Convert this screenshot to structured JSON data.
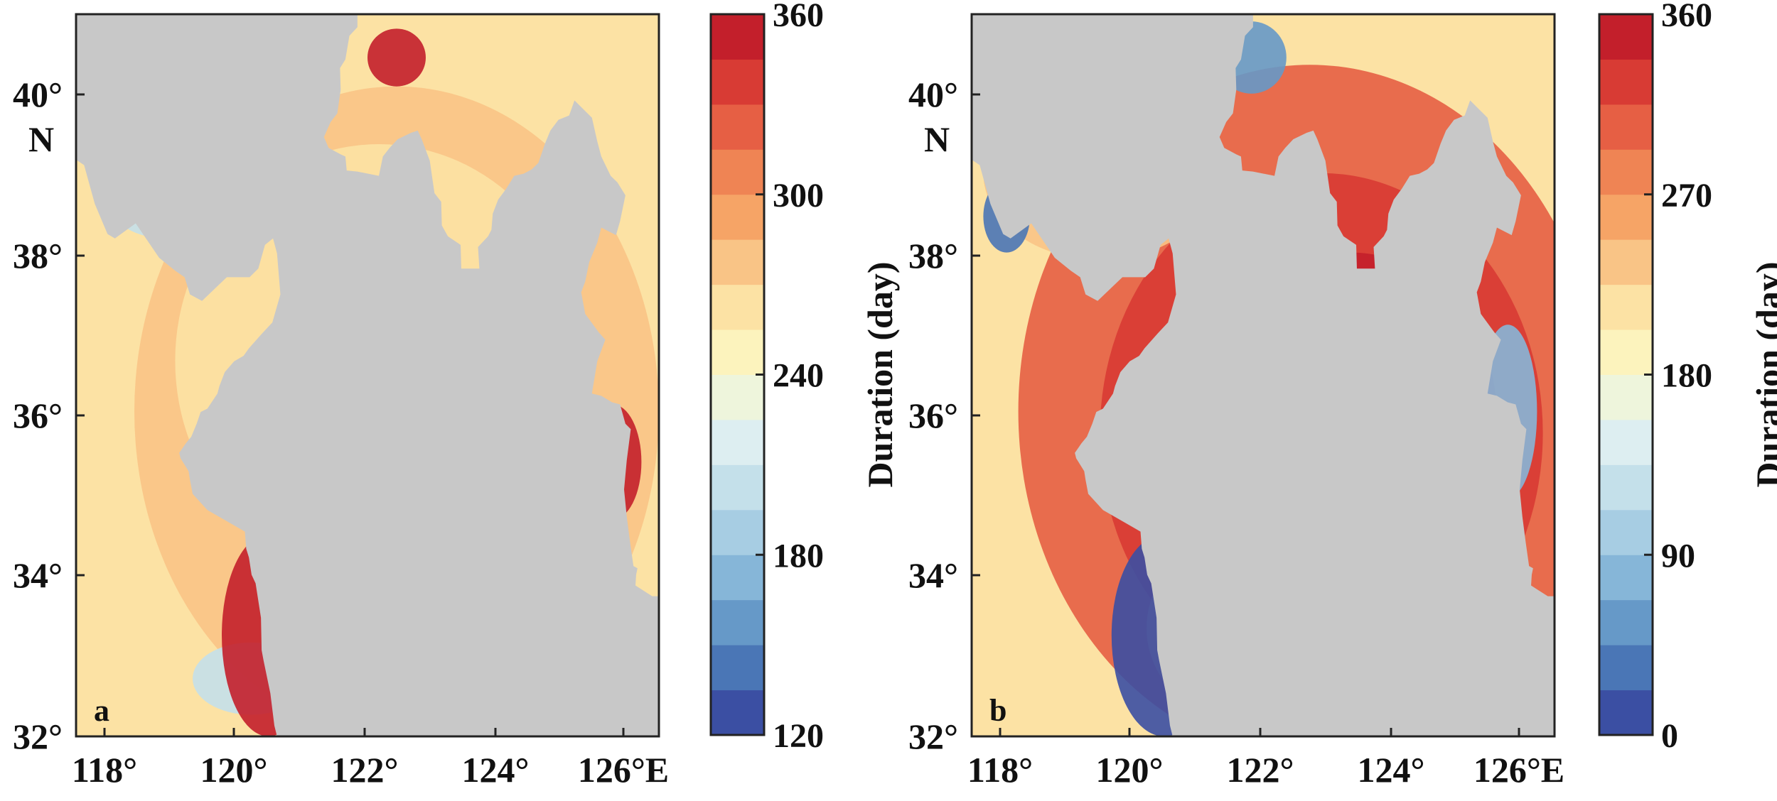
{
  "panels": [
    {
      "id": "a",
      "label": "a",
      "colorbar": {
        "label": "Duration (day)",
        "ticks": [
          "120",
          "180",
          "240",
          "300",
          "360"
        ],
        "min": 120,
        "max": 360,
        "levels": 16
      }
    },
    {
      "id": "b",
      "label": "b",
      "colorbar": {
        "label": "Duration (day)",
        "ticks": [
          "0",
          "90",
          "180",
          "270",
          "360"
        ],
        "min": 0,
        "max": 360,
        "levels": 16
      }
    }
  ],
  "axes": {
    "x_ticks": [
      "118°",
      "120°",
      "122°",
      "124°",
      "126°E"
    ],
    "y_ticks": [
      "32°",
      "34°",
      "36°",
      "38°",
      "40°"
    ],
    "y_unit": "N",
    "lon_range": [
      117.6,
      126.6
    ],
    "lat_range": [
      32,
      41
    ]
  },
  "colors": {
    "land": "#c8c8c8",
    "frame": "#222222",
    "colormap": [
      "#3b4fa3",
      "#4a76b6",
      "#6699c8",
      "#86b6d8",
      "#a7cde3",
      "#c4e0ea",
      "#ddeef1",
      "#eef5dc",
      "#fcf3bd",
      "#fce2a4",
      "#f9c486",
      "#f6a466",
      "#ef8454",
      "#e65f44",
      "#d83b34",
      "#c31f2b"
    ]
  }
}
